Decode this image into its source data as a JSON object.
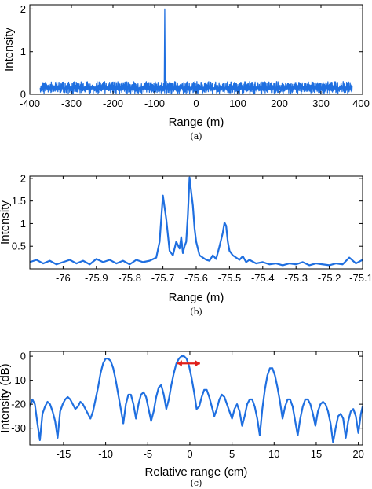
{
  "chart_data": [
    {
      "type": "line",
      "caption": "(a)",
      "xlabel": "Range (m)",
      "ylabel": "Intensity",
      "xlim": [
        -400,
        400
      ],
      "ylim": [
        0,
        2.1
      ],
      "xticks": [
        -400,
        -300,
        -200,
        -100,
        0,
        100,
        200,
        300,
        400
      ],
      "yticks": [
        0,
        1,
        2
      ],
      "color": "#1f6fe0",
      "series": [
        {
          "x_range": [
            -375,
            375
          ],
          "noise_floor": [
            0.15,
            0.3
          ],
          "peak": {
            "x": -75.6,
            "y": 2.0
          }
        }
      ]
    },
    {
      "type": "line",
      "caption": "(b)",
      "xlabel": "Range (m)",
      "ylabel": "Intensity",
      "xlim": [
        -76.1,
        -75.1
      ],
      "ylim": [
        0,
        2.05
      ],
      "xticks": [
        -76,
        -75.9,
        -75.8,
        -75.7,
        -75.6,
        -75.5,
        -75.4,
        -75.3,
        -75.2,
        -75.1
      ],
      "yticks": [
        0.5,
        1,
        1.5,
        2
      ],
      "color": "#1f6fe0",
      "series": [
        {
          "x": [
            -76.1,
            -76.08,
            -76.06,
            -76.04,
            -76.02,
            -76.0,
            -75.98,
            -75.96,
            -75.94,
            -75.92,
            -75.9,
            -75.88,
            -75.86,
            -75.84,
            -75.82,
            -75.8,
            -75.78,
            -75.76,
            -75.74,
            -75.72,
            -75.71,
            -75.7,
            -75.69,
            -75.68,
            -75.67,
            -75.66,
            -75.65,
            -75.645,
            -75.64,
            -75.635,
            -75.63,
            -75.625,
            -75.62,
            -75.615,
            -75.61,
            -75.605,
            -75.6,
            -75.595,
            -75.59,
            -75.58,
            -75.57,
            -75.56,
            -75.55,
            -75.54,
            -75.53,
            -75.52,
            -75.515,
            -75.51,
            -75.505,
            -75.5,
            -75.49,
            -75.48,
            -75.47,
            -75.46,
            -75.45,
            -75.44,
            -75.42,
            -75.4,
            -75.38,
            -75.36,
            -75.34,
            -75.32,
            -75.3,
            -75.28,
            -75.26,
            -75.24,
            -75.22,
            -75.2,
            -75.18,
            -75.16,
            -75.14,
            -75.12,
            -75.1
          ],
          "y": [
            0.15,
            0.2,
            0.12,
            0.18,
            0.1,
            0.15,
            0.2,
            0.12,
            0.18,
            0.1,
            0.22,
            0.15,
            0.2,
            0.12,
            0.18,
            0.1,
            0.2,
            0.15,
            0.18,
            0.25,
            0.6,
            1.62,
            1.1,
            0.4,
            0.3,
            0.6,
            0.45,
            0.7,
            0.35,
            0.5,
            0.6,
            1.2,
            2.02,
            1.7,
            1.4,
            0.9,
            0.6,
            0.45,
            0.3,
            0.25,
            0.2,
            0.18,
            0.3,
            0.22,
            0.5,
            0.8,
            1.02,
            0.95,
            0.6,
            0.4,
            0.3,
            0.25,
            0.2,
            0.28,
            0.15,
            0.2,
            0.12,
            0.15,
            0.1,
            0.12,
            0.08,
            0.12,
            0.1,
            0.15,
            0.08,
            0.12,
            0.1,
            0.08,
            0.12,
            0.1,
            0.25,
            0.12,
            0.2
          ]
        }
      ]
    },
    {
      "type": "line",
      "caption": "(c)",
      "xlabel": "Relative range (cm)",
      "ylabel": "Intensity (dB)",
      "xlim": [
        -19,
        20.5
      ],
      "ylim": [
        -37,
        2
      ],
      "xticks": [
        -15,
        -10,
        -5,
        0,
        5,
        10,
        15,
        20
      ],
      "yticks": [
        0,
        -10,
        -20,
        -30
      ],
      "color": "#1f6fe0",
      "marker_color": "#e0201b",
      "marker_x": [
        -1.5,
        1.2
      ],
      "marker_y": -3,
      "series": [
        {
          "x": [
            -19,
            -18.7,
            -18.4,
            -18.1,
            -17.8,
            -17.5,
            -17.2,
            -16.9,
            -16.6,
            -16.3,
            -16.0,
            -15.7,
            -15.4,
            -15.1,
            -14.8,
            -14.5,
            -14.2,
            -13.9,
            -13.6,
            -13.3,
            -13.0,
            -12.7,
            -12.4,
            -12.1,
            -11.8,
            -11.5,
            -11.2,
            -10.9,
            -10.6,
            -10.3,
            -10.0,
            -9.7,
            -9.4,
            -9.1,
            -8.8,
            -8.5,
            -8.2,
            -7.9,
            -7.6,
            -7.3,
            -7.0,
            -6.7,
            -6.4,
            -6.1,
            -5.8,
            -5.5,
            -5.2,
            -4.9,
            -4.6,
            -4.3,
            -4.0,
            -3.7,
            -3.4,
            -3.1,
            -2.8,
            -2.5,
            -2.2,
            -1.9,
            -1.6,
            -1.3,
            -1.0,
            -0.7,
            -0.4,
            -0.1,
            0.2,
            0.5,
            0.8,
            1.1,
            1.4,
            1.7,
            2.0,
            2.3,
            2.6,
            2.9,
            3.2,
            3.5,
            3.8,
            4.1,
            4.4,
            4.7,
            5.0,
            5.3,
            5.6,
            5.9,
            6.2,
            6.5,
            6.8,
            7.1,
            7.4,
            7.7,
            8.0,
            8.3,
            8.6,
            8.9,
            9.2,
            9.5,
            9.8,
            10.1,
            10.4,
            10.7,
            11.0,
            11.3,
            11.6,
            11.9,
            12.2,
            12.5,
            12.8,
            13.1,
            13.4,
            13.7,
            14.0,
            14.3,
            14.6,
            14.9,
            15.2,
            15.5,
            15.8,
            16.1,
            16.4,
            16.7,
            17.0,
            17.3,
            17.6,
            17.9,
            18.2,
            18.5,
            18.8,
            19.1,
            19.4,
            19.7,
            20.0,
            20.3,
            20.5
          ],
          "y": [
            -21,
            -18,
            -20,
            -28,
            -35,
            -24,
            -21,
            -19,
            -20,
            -23,
            -27,
            -34,
            -23,
            -20,
            -18,
            -17,
            -18,
            -20,
            -22,
            -21,
            -19,
            -20,
            -22,
            -24,
            -26,
            -23,
            -18,
            -13,
            -7,
            -3,
            -1,
            -1,
            -2,
            -5,
            -10,
            -16,
            -22,
            -28,
            -20,
            -16,
            -16,
            -20,
            -26,
            -20,
            -16,
            -15,
            -17,
            -22,
            -27,
            -23,
            -17,
            -13,
            -12,
            -16,
            -22,
            -18,
            -12,
            -7,
            -3,
            -1,
            0,
            0,
            -1,
            -4,
            -9,
            -15,
            -22,
            -21,
            -17,
            -14,
            -14,
            -17,
            -21,
            -25,
            -22,
            -18,
            -16,
            -17,
            -20,
            -23,
            -26,
            -22,
            -20,
            -23,
            -29,
            -25,
            -20,
            -18,
            -18,
            -21,
            -26,
            -33,
            -22,
            -14,
            -8,
            -5,
            -5,
            -8,
            -13,
            -19,
            -26,
            -21,
            -18,
            -18,
            -21,
            -27,
            -33,
            -26,
            -21,
            -18,
            -18,
            -20,
            -24,
            -29,
            -23,
            -20,
            -19,
            -20,
            -23,
            -28,
            -36,
            -30,
            -25,
            -24,
            -26,
            -34,
            -27,
            -23,
            -22,
            -25,
            -32,
            -24,
            -21
          ]
        }
      ]
    }
  ]
}
